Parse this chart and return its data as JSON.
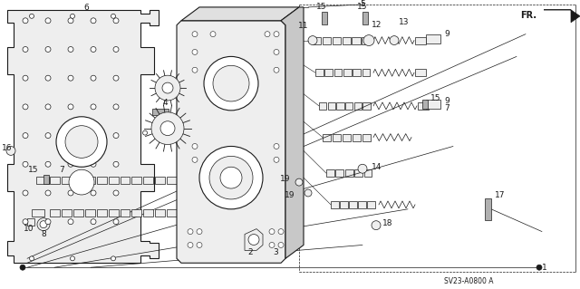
{
  "background_color": "#ffffff",
  "line_color": "#1a1a1a",
  "figure_width": 6.4,
  "figure_height": 3.19,
  "dpi": 100,
  "diagram_code": "SV23-A0800 A",
  "label_fontsize": 6.5,
  "annotation_color": "#111111",
  "gray_fill": "#d8d8d8",
  "light_gray": "#eeeeee",
  "mid_gray": "#b0b0b0"
}
